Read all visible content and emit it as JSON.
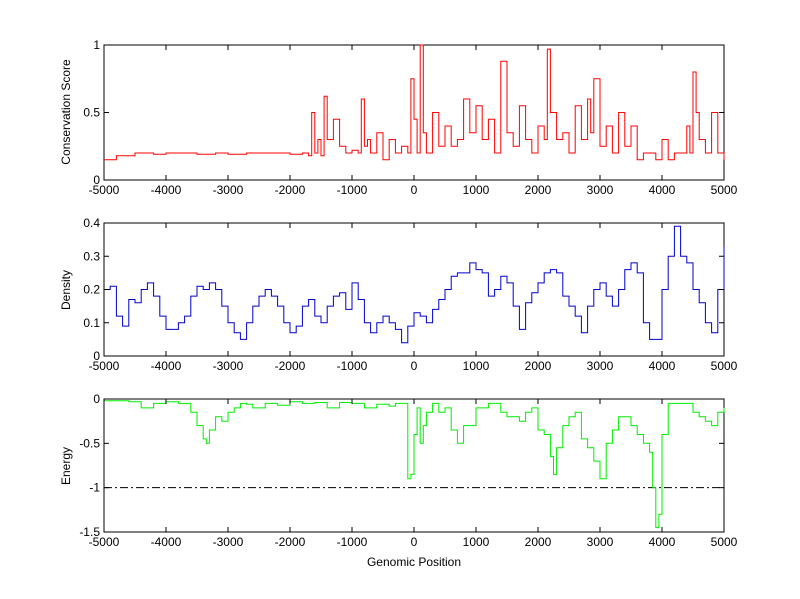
{
  "xlabel": "Genomic Position",
  "chart_data": [
    {
      "type": "line",
      "ylabel": "Conservation Score",
      "xlim": [
        -5000,
        5000
      ],
      "ylim": [
        0,
        1
      ],
      "xticks": [
        -5000,
        -4000,
        -3000,
        -2000,
        -1000,
        0,
        1000,
        2000,
        3000,
        4000,
        5000
      ],
      "yticks": [
        0,
        0.5,
        1
      ],
      "ytick_labels": [
        "0",
        "0.5",
        "1"
      ],
      "series": [
        {
          "color": "#ff0000",
          "x": [
            -5000,
            -4800,
            -4500,
            -4200,
            -4000,
            -3800,
            -3500,
            -3200,
            -3000,
            -2700,
            -2400,
            -2100,
            -2000,
            -1800,
            -1700,
            -1650,
            -1600,
            -1550,
            -1500,
            -1450,
            -1400,
            -1300,
            -1200,
            -1100,
            -1000,
            -950,
            -900,
            -850,
            -800,
            -750,
            -700,
            -600,
            -500,
            -400,
            -300,
            -200,
            -100,
            -50,
            0,
            50,
            100,
            150,
            200,
            300,
            400,
            500,
            600,
            700,
            800,
            900,
            1000,
            1100,
            1200,
            1300,
            1400,
            1500,
            1600,
            1700,
            1800,
            1900,
            2000,
            2100,
            2150,
            2200,
            2300,
            2400,
            2500,
            2600,
            2700,
            2800,
            2850,
            2900,
            3000,
            3100,
            3200,
            3300,
            3400,
            3500,
            3600,
            3700,
            3800,
            3900,
            4000,
            4100,
            4200,
            4300,
            4400,
            4450,
            4500,
            4550,
            4600,
            4700,
            4800,
            4900,
            5000
          ],
          "y": [
            0.15,
            0.18,
            0.2,
            0.19,
            0.2,
            0.2,
            0.19,
            0.2,
            0.19,
            0.2,
            0.2,
            0.2,
            0.19,
            0.2,
            0.18,
            0.5,
            0.2,
            0.3,
            0.18,
            0.62,
            0.3,
            0.45,
            0.25,
            0.2,
            0.22,
            0.22,
            0.2,
            0.6,
            0.25,
            0.3,
            0.2,
            0.35,
            0.15,
            0.3,
            0.2,
            0.25,
            0.2,
            0.75,
            0.45,
            0.2,
            1.0,
            0.35,
            0.2,
            0.5,
            0.25,
            0.4,
            0.25,
            0.3,
            0.6,
            0.35,
            0.55,
            0.3,
            0.45,
            0.2,
            0.88,
            0.35,
            0.25,
            0.55,
            0.3,
            0.2,
            0.4,
            0.3,
            0.97,
            0.5,
            0.3,
            0.35,
            0.2,
            0.55,
            0.3,
            0.6,
            0.35,
            0.75,
            0.25,
            0.4,
            0.2,
            0.5,
            0.25,
            0.4,
            0.15,
            0.2,
            0.2,
            0.15,
            0.3,
            0.15,
            0.2,
            0.2,
            0.4,
            0.2,
            0.8,
            0.5,
            0.3,
            0.2,
            0.5,
            0.2,
            0.15
          ]
        }
      ]
    },
    {
      "type": "line",
      "ylabel": "Density",
      "xlim": [
        -5000,
        5000
      ],
      "ylim": [
        0,
        0.4
      ],
      "xticks": [
        -5000,
        -4000,
        -3000,
        -2000,
        -1000,
        0,
        1000,
        2000,
        3000,
        4000,
        5000
      ],
      "yticks": [
        0,
        0.1,
        0.2,
        0.3,
        0.4
      ],
      "ytick_labels": [
        "0",
        "0.1",
        "0.2",
        "0.3",
        "0.4"
      ],
      "series": [
        {
          "color": "#0000cc",
          "x": [
            -5000,
            -4900,
            -4800,
            -4700,
            -4600,
            -4500,
            -4400,
            -4300,
            -4200,
            -4100,
            -4000,
            -3900,
            -3800,
            -3700,
            -3600,
            -3500,
            -3400,
            -3300,
            -3200,
            -3100,
            -3000,
            -2900,
            -2800,
            -2700,
            -2600,
            -2500,
            -2400,
            -2300,
            -2200,
            -2100,
            -2000,
            -1900,
            -1800,
            -1700,
            -1600,
            -1500,
            -1400,
            -1300,
            -1200,
            -1100,
            -1000,
            -900,
            -800,
            -700,
            -600,
            -500,
            -400,
            -300,
            -200,
            -100,
            0,
            100,
            200,
            300,
            400,
            500,
            600,
            700,
            800,
            900,
            1000,
            1100,
            1200,
            1300,
            1400,
            1500,
            1600,
            1700,
            1800,
            1900,
            2000,
            2100,
            2200,
            2300,
            2400,
            2500,
            2600,
            2700,
            2800,
            2900,
            3000,
            3100,
            3200,
            3300,
            3400,
            3500,
            3600,
            3700,
            3800,
            3900,
            4000,
            4100,
            4200,
            4300,
            4400,
            4500,
            4600,
            4700,
            4800,
            4900,
            5000
          ],
          "y": [
            0.2,
            0.21,
            0.12,
            0.09,
            0.17,
            0.16,
            0.2,
            0.22,
            0.18,
            0.12,
            0.08,
            0.08,
            0.1,
            0.12,
            0.18,
            0.21,
            0.2,
            0.22,
            0.2,
            0.15,
            0.1,
            0.07,
            0.05,
            0.1,
            0.15,
            0.18,
            0.2,
            0.18,
            0.15,
            0.1,
            0.07,
            0.09,
            0.15,
            0.17,
            0.12,
            0.1,
            0.15,
            0.18,
            0.19,
            0.14,
            0.22,
            0.17,
            0.1,
            0.07,
            0.1,
            0.12,
            0.1,
            0.08,
            0.04,
            0.09,
            0.13,
            0.12,
            0.1,
            0.14,
            0.17,
            0.2,
            0.24,
            0.25,
            0.25,
            0.28,
            0.26,
            0.25,
            0.18,
            0.2,
            0.24,
            0.22,
            0.15,
            0.08,
            0.16,
            0.19,
            0.22,
            0.25,
            0.26,
            0.25,
            0.18,
            0.15,
            0.12,
            0.07,
            0.15,
            0.2,
            0.22,
            0.18,
            0.15,
            0.2,
            0.26,
            0.28,
            0.25,
            0.1,
            0.05,
            0.05,
            0.2,
            0.3,
            0.39,
            0.3,
            0.28,
            0.2,
            0.16,
            0.1,
            0.07,
            0.2,
            0.33
          ]
        }
      ]
    },
    {
      "type": "line",
      "ylabel": "Energy",
      "xlabel": "Genomic Position",
      "xlim": [
        -5000,
        5000
      ],
      "ylim": [
        -1.5,
        0
      ],
      "xticks": [
        -5000,
        -4000,
        -3000,
        -2000,
        -1000,
        0,
        1000,
        2000,
        3000,
        4000,
        5000
      ],
      "yticks": [
        -1.5,
        -1,
        -0.5,
        0
      ],
      "ytick_labels": [
        "-1.5",
        "-1",
        "-0.5",
        "0"
      ],
      "threshold": {
        "y": -1,
        "style": "dash-dot",
        "color": "#000000"
      },
      "series": [
        {
          "color": "#00ee00",
          "x": [
            -5000,
            -4800,
            -4600,
            -4400,
            -4200,
            -4000,
            -3800,
            -3600,
            -3500,
            -3400,
            -3350,
            -3300,
            -3200,
            -3100,
            -3000,
            -2900,
            -2800,
            -2700,
            -2600,
            -2400,
            -2200,
            -2000,
            -1800,
            -1600,
            -1400,
            -1200,
            -1000,
            -800,
            -600,
            -400,
            -300,
            -200,
            -100,
            -50,
            0,
            50,
            100,
            150,
            200,
            300,
            400,
            500,
            600,
            700,
            800,
            1000,
            1200,
            1300,
            1400,
            1500,
            1700,
            1800,
            1900,
            2000,
            2100,
            2200,
            2250,
            2300,
            2400,
            2500,
            2600,
            2700,
            2800,
            2900,
            3000,
            3100,
            3200,
            3300,
            3400,
            3500,
            3600,
            3700,
            3800,
            3850,
            3900,
            3950,
            4000,
            4100,
            4200,
            4400,
            4500,
            4600,
            4700,
            4800,
            4900,
            5000
          ],
          "y": [
            -0.02,
            -0.02,
            -0.03,
            -0.1,
            -0.05,
            -0.03,
            -0.05,
            -0.15,
            -0.3,
            -0.45,
            -0.5,
            -0.35,
            -0.2,
            -0.25,
            -0.15,
            -0.1,
            -0.05,
            -0.06,
            -0.1,
            -0.05,
            -0.07,
            -0.03,
            -0.05,
            -0.04,
            -0.1,
            -0.04,
            -0.05,
            -0.1,
            -0.06,
            -0.08,
            -0.05,
            -0.05,
            -0.9,
            -0.85,
            -0.4,
            -0.1,
            -0.5,
            -0.3,
            -0.15,
            -0.05,
            -0.15,
            -0.1,
            -0.35,
            -0.5,
            -0.3,
            -0.1,
            -0.05,
            -0.05,
            -0.15,
            -0.2,
            -0.25,
            -0.15,
            -0.1,
            -0.35,
            -0.4,
            -0.65,
            -0.85,
            -0.55,
            -0.3,
            -0.2,
            -0.15,
            -0.45,
            -0.55,
            -0.7,
            -0.9,
            -0.5,
            -0.35,
            -0.2,
            -0.2,
            -0.3,
            -0.4,
            -0.5,
            -0.6,
            -1.0,
            -1.45,
            -1.3,
            -0.4,
            -0.05,
            -0.05,
            -0.05,
            -0.15,
            -0.2,
            -0.25,
            -0.3,
            -0.15,
            -0.1
          ]
        }
      ]
    }
  ]
}
